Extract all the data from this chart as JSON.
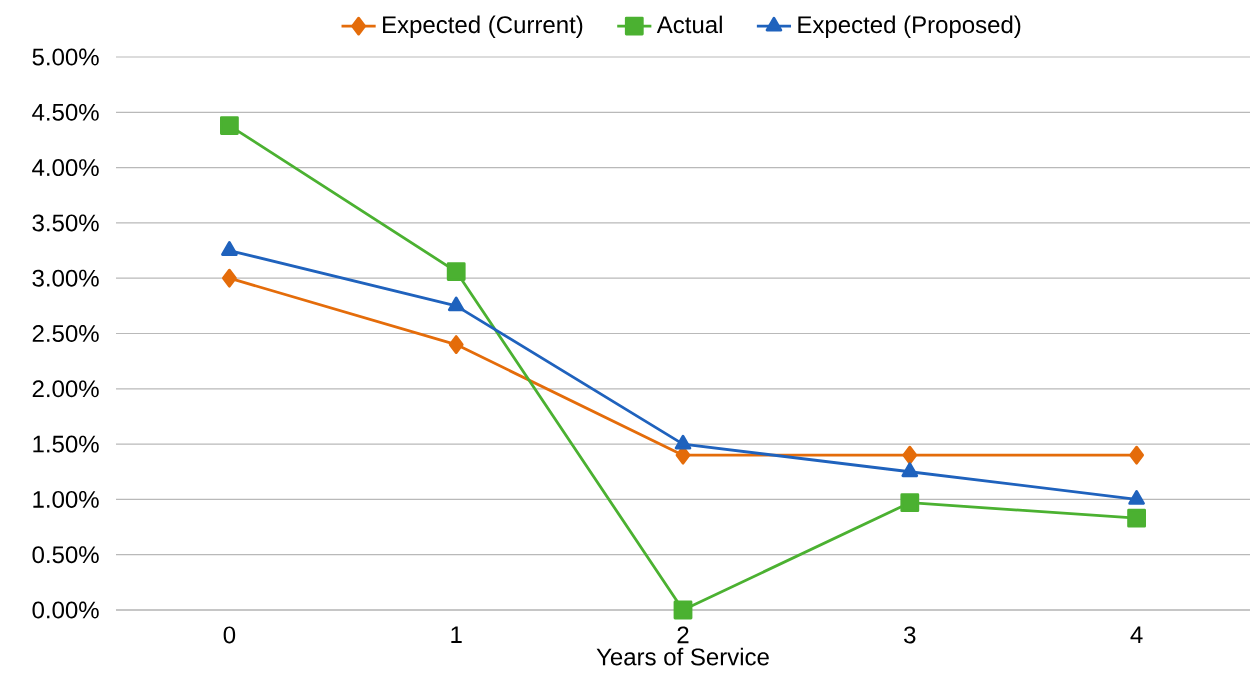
{
  "chart_data": {
    "type": "line",
    "xlabel": "Years of Service",
    "categories": [
      "0",
      "1",
      "2",
      "3",
      "4"
    ],
    "series": [
      {
        "name": "Expected (Current)",
        "color": "#e46c0a",
        "marker": "diamond",
        "values": [
          3.0,
          2.4,
          1.4,
          1.4,
          1.4
        ]
      },
      {
        "name": "Actual",
        "color": "#4bb131",
        "marker": "square",
        "values": [
          4.38,
          3.06,
          0.0,
          0.97,
          0.83
        ]
      },
      {
        "name": "Expected (Proposed)",
        "color": "#1f62bd",
        "marker": "triangle",
        "values": [
          3.25,
          2.75,
          1.5,
          1.25,
          1.0
        ]
      }
    ],
    "ylim": [
      0,
      5
    ],
    "yticks": [
      {
        "value": 0,
        "label": "0.00%"
      },
      {
        "value": 0.5,
        "label": "0.50%"
      },
      {
        "value": 1,
        "label": "1.00%"
      },
      {
        "value": 1.5,
        "label": "1.50%"
      },
      {
        "value": 2,
        "label": "2.00%"
      },
      {
        "value": 2.5,
        "label": "2.50%"
      },
      {
        "value": 3,
        "label": "3.00%"
      },
      {
        "value": 3.5,
        "label": "3.50%"
      },
      {
        "value": 4,
        "label": "4.00%"
      },
      {
        "value": 4.5,
        "label": "4.50%"
      },
      {
        "value": 5,
        "label": "5.00%"
      }
    ],
    "grid": "y",
    "legend": "top"
  }
}
